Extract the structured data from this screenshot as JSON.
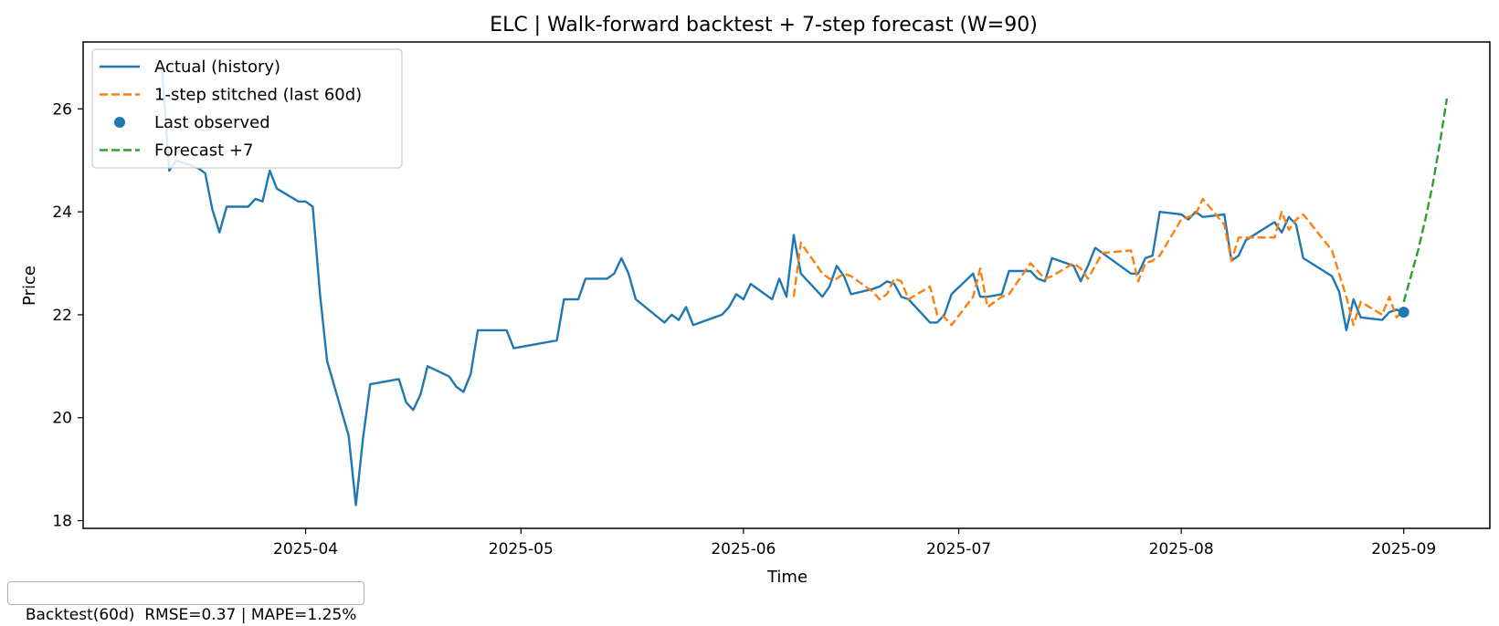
{
  "chart_data": {
    "type": "line",
    "title": "ELC | Walk-forward backtest + 7-step forecast (W=90)",
    "xlabel": "Time",
    "ylabel": "Price",
    "xlim": [
      "2025-03-01",
      "2025-09-13"
    ],
    "ylim": [
      17.85,
      27.3
    ],
    "x_ticks": [
      "2025-04",
      "2025-05",
      "2025-06",
      "2025-07",
      "2025-08",
      "2025-09"
    ],
    "y_ticks": [
      18,
      20,
      22,
      24,
      26
    ],
    "grid": false,
    "legend_position": "top-left",
    "series": [
      {
        "name": "Actual (history)",
        "style": "solid",
        "color": "#1f77b4",
        "points": [
          [
            "2025-03-11",
            26.9
          ],
          [
            "2025-03-12",
            26.75
          ],
          [
            "2025-03-13",
            24.8
          ],
          [
            "2025-03-14",
            25.0
          ],
          [
            "2025-03-17",
            24.85
          ],
          [
            "2025-03-18",
            24.75
          ],
          [
            "2025-03-19",
            24.05
          ],
          [
            "2025-03-20",
            23.6
          ],
          [
            "2025-03-21",
            24.1
          ],
          [
            "2025-03-24",
            24.1
          ],
          [
            "2025-03-25",
            24.25
          ],
          [
            "2025-03-26",
            24.2
          ],
          [
            "2025-03-27",
            24.8
          ],
          [
            "2025-03-28",
            24.45
          ],
          [
            "2025-03-31",
            24.2
          ],
          [
            "2025-04-01",
            24.2
          ],
          [
            "2025-04-02",
            24.1
          ],
          [
            "2025-04-03",
            22.4
          ],
          [
            "2025-04-04",
            21.1
          ],
          [
            "2025-04-07",
            19.65
          ],
          [
            "2025-04-08",
            18.3
          ],
          [
            "2025-04-09",
            19.6
          ],
          [
            "2025-04-10",
            20.65
          ],
          [
            "2025-04-14",
            20.75
          ],
          [
            "2025-04-15",
            20.3
          ],
          [
            "2025-04-16",
            20.15
          ],
          [
            "2025-04-17",
            20.45
          ],
          [
            "2025-04-18",
            21.0
          ],
          [
            "2025-04-21",
            20.8
          ],
          [
            "2025-04-22",
            20.6
          ],
          [
            "2025-04-23",
            20.5
          ],
          [
            "2025-04-24",
            20.85
          ],
          [
            "2025-04-25",
            21.7
          ],
          [
            "2025-04-28",
            21.7
          ],
          [
            "2025-04-29",
            21.7
          ],
          [
            "2025-04-30",
            21.35
          ],
          [
            "2025-05-06",
            21.5
          ],
          [
            "2025-05-07",
            22.3
          ],
          [
            "2025-05-09",
            22.3
          ],
          [
            "2025-05-10",
            22.7
          ],
          [
            "2025-05-13",
            22.7
          ],
          [
            "2025-05-14",
            22.8
          ],
          [
            "2025-05-15",
            23.1
          ],
          [
            "2025-05-16",
            22.8
          ],
          [
            "2025-05-17",
            22.3
          ],
          [
            "2025-05-21",
            21.85
          ],
          [
            "2025-05-22",
            22.0
          ],
          [
            "2025-05-23",
            21.9
          ],
          [
            "2025-05-24",
            22.15
          ],
          [
            "2025-05-25",
            21.8
          ],
          [
            "2025-05-29",
            22.0
          ],
          [
            "2025-05-30",
            22.15
          ],
          [
            "2025-05-31",
            22.4
          ],
          [
            "2025-06-01",
            22.3
          ],
          [
            "2025-06-02",
            22.6
          ],
          [
            "2025-06-05",
            22.3
          ],
          [
            "2025-06-06",
            22.7
          ],
          [
            "2025-06-07",
            22.35
          ],
          [
            "2025-06-08",
            23.55
          ],
          [
            "2025-06-09",
            22.8
          ],
          [
            "2025-06-12",
            22.35
          ],
          [
            "2025-06-13",
            22.55
          ],
          [
            "2025-06-14",
            22.95
          ],
          [
            "2025-06-15",
            22.75
          ],
          [
            "2025-06-16",
            22.4
          ],
          [
            "2025-06-19",
            22.5
          ],
          [
            "2025-06-20",
            22.55
          ],
          [
            "2025-06-21",
            22.65
          ],
          [
            "2025-06-22",
            22.6
          ],
          [
            "2025-06-23",
            22.35
          ],
          [
            "2025-06-24",
            22.3
          ],
          [
            "2025-06-27",
            21.85
          ],
          [
            "2025-06-28",
            21.85
          ],
          [
            "2025-06-29",
            22.0
          ],
          [
            "2025-06-30",
            22.4
          ],
          [
            "2025-07-03",
            22.8
          ],
          [
            "2025-07-04",
            22.35
          ],
          [
            "2025-07-05",
            22.35
          ],
          [
            "2025-07-07",
            22.4
          ],
          [
            "2025-07-08",
            22.85
          ],
          [
            "2025-07-11",
            22.85
          ],
          [
            "2025-07-12",
            22.7
          ],
          [
            "2025-07-13",
            22.65
          ],
          [
            "2025-07-14",
            23.1
          ],
          [
            "2025-07-17",
            22.95
          ],
          [
            "2025-07-18",
            22.65
          ],
          [
            "2025-07-19",
            22.95
          ],
          [
            "2025-07-20",
            23.3
          ],
          [
            "2025-07-21",
            23.2
          ],
          [
            "2025-07-25",
            22.8
          ],
          [
            "2025-07-26",
            22.8
          ],
          [
            "2025-07-27",
            23.1
          ],
          [
            "2025-07-28",
            23.15
          ],
          [
            "2025-07-29",
            24.0
          ],
          [
            "2025-08-01",
            23.95
          ],
          [
            "2025-08-02",
            23.85
          ],
          [
            "2025-08-03",
            24.0
          ],
          [
            "2025-08-04",
            23.9
          ],
          [
            "2025-08-07",
            23.95
          ],
          [
            "2025-08-08",
            23.05
          ],
          [
            "2025-08-09",
            23.15
          ],
          [
            "2025-08-10",
            23.45
          ],
          [
            "2025-08-14",
            23.8
          ],
          [
            "2025-08-15",
            23.6
          ],
          [
            "2025-08-16",
            23.9
          ],
          [
            "2025-08-17",
            23.75
          ],
          [
            "2025-08-18",
            23.1
          ],
          [
            "2025-08-22",
            22.75
          ],
          [
            "2025-08-23",
            22.45
          ],
          [
            "2025-08-24",
            21.7
          ],
          [
            "2025-08-25",
            22.3
          ],
          [
            "2025-08-26",
            21.95
          ],
          [
            "2025-08-29",
            21.9
          ],
          [
            "2025-08-30",
            22.05
          ],
          [
            "2025-08-31",
            22.1
          ],
          [
            "2025-09-01",
            22.05
          ]
        ]
      },
      {
        "name": "1-step stitched (last 60d)",
        "style": "dashed",
        "color": "#ff7f0e",
        "points": [
          [
            "2025-06-08",
            22.35
          ],
          [
            "2025-06-09",
            23.4
          ],
          [
            "2025-06-12",
            22.8
          ],
          [
            "2025-06-13",
            22.7
          ],
          [
            "2025-06-14",
            22.7
          ],
          [
            "2025-06-15",
            22.8
          ],
          [
            "2025-06-16",
            22.75
          ],
          [
            "2025-06-19",
            22.45
          ],
          [
            "2025-06-20",
            22.3
          ],
          [
            "2025-06-21",
            22.4
          ],
          [
            "2025-06-22",
            22.7
          ],
          [
            "2025-06-23",
            22.65
          ],
          [
            "2025-06-24",
            22.3
          ],
          [
            "2025-06-27",
            22.55
          ],
          [
            "2025-06-28",
            22.0
          ],
          [
            "2025-06-29",
            21.95
          ],
          [
            "2025-06-30",
            21.8
          ],
          [
            "2025-07-03",
            22.35
          ],
          [
            "2025-07-04",
            22.9
          ],
          [
            "2025-07-05",
            22.15
          ],
          [
            "2025-07-07",
            22.35
          ],
          [
            "2025-07-08",
            22.4
          ],
          [
            "2025-07-11",
            23.0
          ],
          [
            "2025-07-12",
            22.85
          ],
          [
            "2025-07-13",
            22.7
          ],
          [
            "2025-07-14",
            22.75
          ],
          [
            "2025-07-17",
            23.0
          ],
          [
            "2025-07-18",
            22.9
          ],
          [
            "2025-07-19",
            22.7
          ],
          [
            "2025-07-20",
            22.95
          ],
          [
            "2025-07-21",
            23.2
          ],
          [
            "2025-07-25",
            23.25
          ],
          [
            "2025-07-26",
            22.65
          ],
          [
            "2025-07-27",
            23.0
          ],
          [
            "2025-07-28",
            23.05
          ],
          [
            "2025-07-29",
            23.15
          ],
          [
            "2025-08-01",
            23.85
          ],
          [
            "2025-08-02",
            23.9
          ],
          [
            "2025-08-03",
            23.95
          ],
          [
            "2025-08-04",
            24.25
          ],
          [
            "2025-08-07",
            23.75
          ],
          [
            "2025-08-08",
            23.05
          ],
          [
            "2025-08-09",
            23.5
          ],
          [
            "2025-08-10",
            23.5
          ],
          [
            "2025-08-14",
            23.5
          ],
          [
            "2025-08-15",
            24.0
          ],
          [
            "2025-08-16",
            23.65
          ],
          [
            "2025-08-17",
            23.85
          ],
          [
            "2025-08-18",
            23.95
          ],
          [
            "2025-08-22",
            23.25
          ],
          [
            "2025-08-23",
            22.8
          ],
          [
            "2025-08-24",
            22.35
          ],
          [
            "2025-08-25",
            21.8
          ],
          [
            "2025-08-26",
            22.25
          ],
          [
            "2025-08-29",
            22.0
          ],
          [
            "2025-08-30",
            22.35
          ],
          [
            "2025-08-31",
            21.95
          ],
          [
            "2025-09-01",
            22.1
          ]
        ]
      },
      {
        "name": "Last observed",
        "style": "marker",
        "color": "#1f77b4",
        "points": [
          [
            "2025-09-01",
            22.05
          ]
        ]
      },
      {
        "name": "Forecast +7",
        "style": "dashed",
        "color": "#2ca02c",
        "points": [
          [
            "2025-09-01",
            22.25
          ],
          [
            "2025-09-02",
            22.75
          ],
          [
            "2025-09-03",
            23.25
          ],
          [
            "2025-09-04",
            23.85
          ],
          [
            "2025-09-05",
            24.5
          ],
          [
            "2025-09-06",
            25.3
          ],
          [
            "2025-09-07",
            26.2
          ]
        ]
      }
    ]
  },
  "footer": {
    "metrics_label": "Backtest(60d)  RMSE=0.37 | MAPE=1.25%"
  }
}
